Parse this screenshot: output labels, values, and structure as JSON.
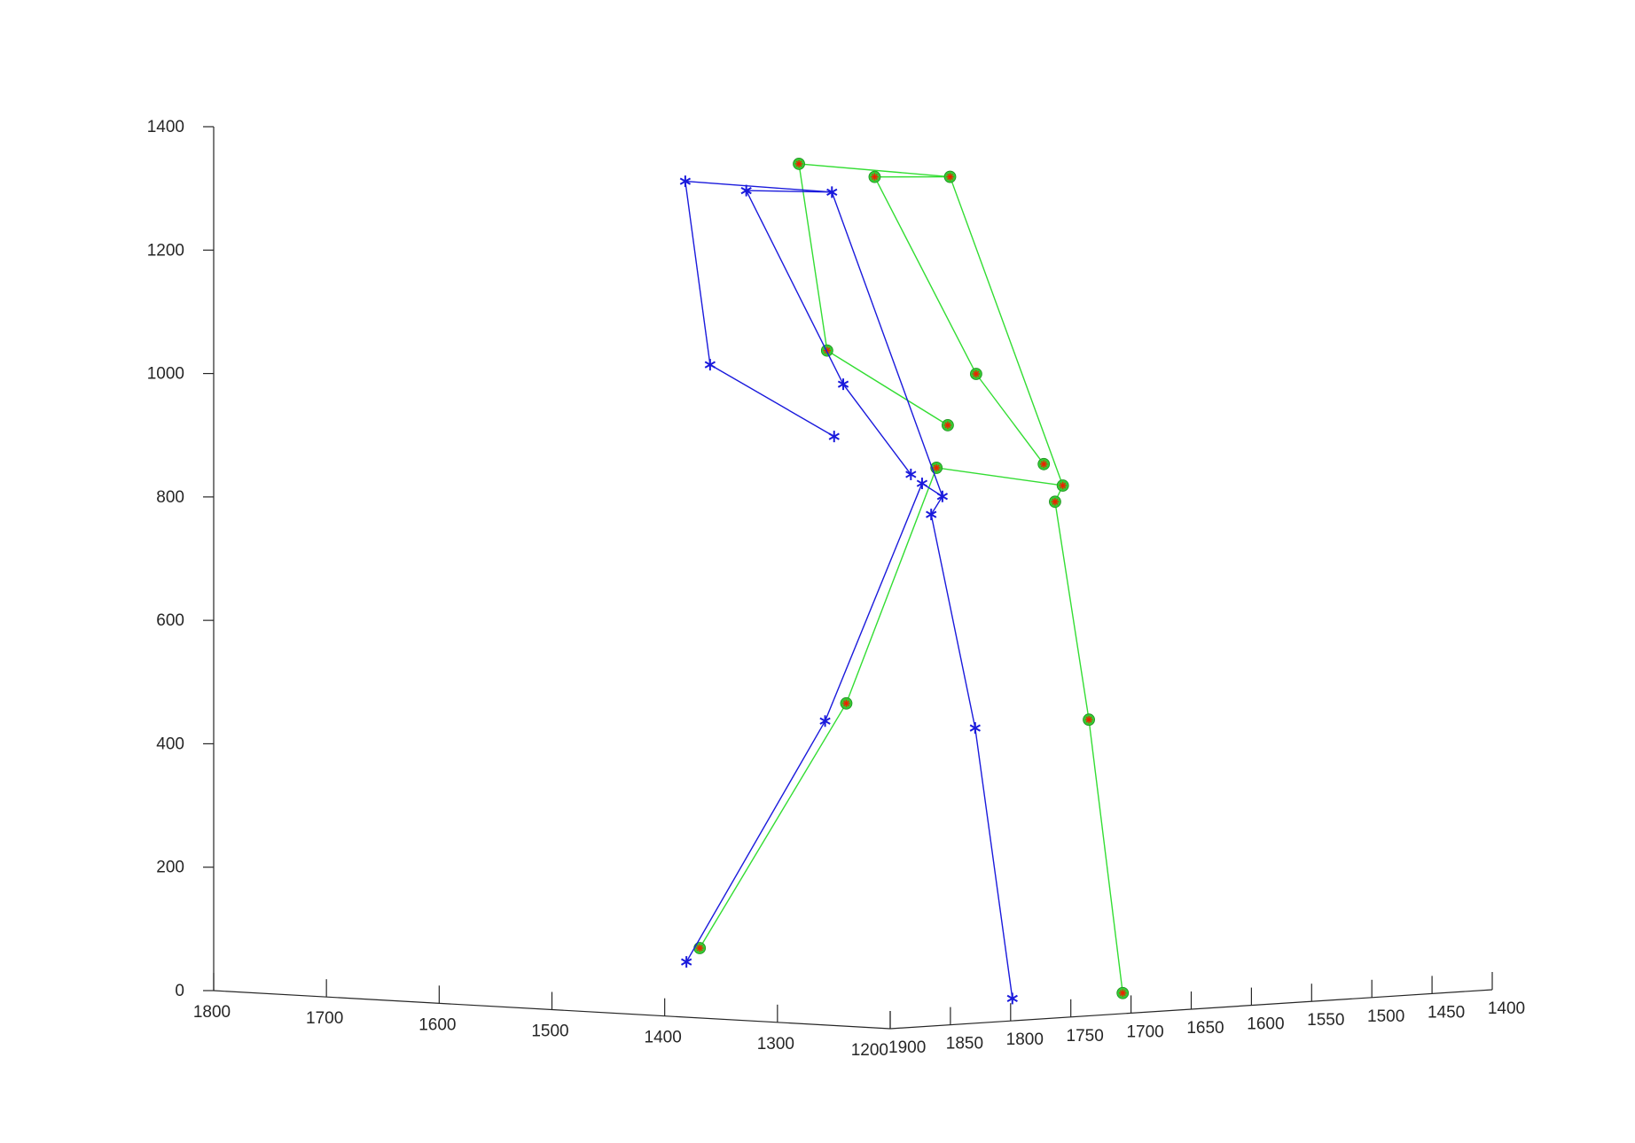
{
  "chart_data": {
    "type": "scatter",
    "projection": "3d",
    "grid": false,
    "legend": false,
    "title": "",
    "xlabel": "",
    "ylabel": "",
    "zlabel": "",
    "axes": {
      "x": {
        "ticks": [
          1800,
          1700,
          1600,
          1500,
          1400,
          1300,
          1200
        ],
        "tick_labels": [
          "1800",
          "1700",
          "1600",
          "1500",
          "1400",
          "1300",
          "1200"
        ],
        "range": [
          1200,
          1800
        ]
      },
      "y": {
        "ticks": [
          1900,
          1850,
          1800,
          1750,
          1700,
          1650,
          1600,
          1550,
          1500,
          1450,
          1400
        ],
        "tick_labels": [
          "1900",
          "1850",
          "1800",
          "1750",
          "1700",
          "1650",
          "1600",
          "1550",
          "1500",
          "1450",
          "1400"
        ],
        "range": [
          1400,
          1900
        ]
      },
      "z": {
        "ticks": [
          0,
          200,
          400,
          600,
          800,
          1000,
          1200,
          1400
        ],
        "tick_labels": [
          "0",
          "200",
          "400",
          "600",
          "800",
          "1000",
          "1200",
          "1400"
        ],
        "range": [
          0,
          1400
        ]
      }
    },
    "skeletons": [
      {
        "color": "#33dd33",
        "marker": "circle-with-red-asterisk",
        "marker_fill": "#33cc33",
        "marker_inner": "#ee2200",
        "joints": [
          [
            1612,
            1590,
            1320
          ],
          [
            1587,
            1590,
            1020
          ],
          [
            1480,
            1590,
            910
          ],
          [
            1400,
            1663,
            1330
          ],
          [
            1300,
            1663,
            840
          ],
          [
            1390,
            1735,
            1340
          ],
          [
            1300,
            1735,
            1030
          ],
          [
            1240,
            1735,
            890
          ],
          [
            1490,
            1590,
            840
          ],
          [
            1570,
            1590,
            450
          ],
          [
            1700,
            1590,
            40
          ],
          [
            1230,
            1735,
            830
          ],
          [
            1200,
            1735,
            480
          ],
          [
            1170,
            1735,
            40
          ]
        ],
        "bones": [
          [
            0,
            1
          ],
          [
            1,
            2
          ],
          [
            0,
            3
          ],
          [
            3,
            5
          ],
          [
            3,
            4
          ],
          [
            5,
            6
          ],
          [
            6,
            7
          ],
          [
            8,
            4
          ],
          [
            4,
            11
          ],
          [
            8,
            9
          ],
          [
            9,
            10
          ],
          [
            11,
            12
          ],
          [
            12,
            13
          ]
        ]
      },
      {
        "color": "#1a1adc",
        "marker": "asterisk",
        "marker_fill": "#1a1adc",
        "marker_inner": "#1a1adc",
        "joints": [
          [
            1606,
            1690,
            1305
          ],
          [
            1584,
            1690,
            1010
          ],
          [
            1474,
            1690,
            905
          ],
          [
            1398,
            1763,
            1318
          ],
          [
            1300,
            1763,
            835
          ],
          [
            1396,
            1836,
            1330
          ],
          [
            1310,
            1836,
            1025
          ],
          [
            1250,
            1836,
            885
          ],
          [
            1396,
            1690,
            837
          ],
          [
            1482,
            1690,
            443
          ],
          [
            1605,
            1690,
            40
          ],
          [
            1232,
            1836,
            822
          ],
          [
            1193,
            1836,
            480
          ],
          [
            1160,
            1836,
            45
          ]
        ],
        "bones": [
          [
            0,
            1
          ],
          [
            1,
            2
          ],
          [
            0,
            3
          ],
          [
            3,
            5
          ],
          [
            3,
            4
          ],
          [
            5,
            6
          ],
          [
            6,
            7
          ],
          [
            8,
            4
          ],
          [
            4,
            11
          ],
          [
            8,
            9
          ],
          [
            9,
            10
          ],
          [
            11,
            12
          ],
          [
            12,
            13
          ]
        ]
      }
    ]
  }
}
